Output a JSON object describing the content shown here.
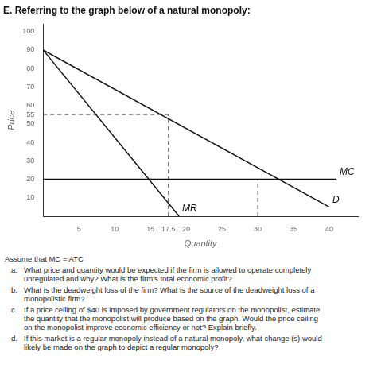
{
  "chart_data": {
    "type": "line",
    "title": "E. Referring to the graph below of a natural monopoly:",
    "x_label": "Quantity",
    "y_label": "Price",
    "xlim": [
      0,
      44
    ],
    "ylim": [
      0,
      104
    ],
    "xticks": [
      5,
      10,
      15,
      17.5,
      20,
      25,
      30,
      35,
      40
    ],
    "yticks": [
      10,
      20,
      30,
      40,
      50,
      55,
      60,
      70,
      80,
      90,
      100
    ],
    "grid": false,
    "series": [
      {
        "name": "D",
        "color": "#111111",
        "points": [
          [
            0,
            90
          ],
          [
            40,
            5
          ]
        ]
      },
      {
        "name": "MR",
        "color": "#111111",
        "points": [
          [
            0,
            90
          ],
          [
            19,
            0
          ]
        ]
      },
      {
        "name": "MC",
        "color": "#111111",
        "points": [
          [
            0,
            20
          ],
          [
            41,
            20
          ]
        ]
      }
    ],
    "dashed_lines": [
      {
        "color": "#666666",
        "line_style": "dashed",
        "points": [
          [
            17.5,
            0
          ],
          [
            17.5,
            55
          ]
        ]
      },
      {
        "color": "#666666",
        "line_style": "dashed",
        "points": [
          [
            0,
            55
          ],
          [
            17.5,
            55
          ]
        ]
      },
      {
        "color": "#666666",
        "line_style": "dashed",
        "points": [
          [
            30,
            0
          ],
          [
            30,
            20
          ]
        ]
      }
    ],
    "annotations": [
      {
        "text": "Assume that MC = ATC"
      },
      {
        "letter": "a.",
        "text": "What price and quantity would be expected if the firm is allowed to operate completely\nunregulated and why?  What is the firm’s total economic profit?"
      },
      {
        "letter": "b.",
        "text": "What is the deadweight loss of the firm?  What is the source of the deadweight loss of a\nmonopolistic firm?"
      },
      {
        "letter": "c.",
        "text": "If a price ceiling of $40 is imposed by government regulators on the monopolist, estimate\nthe quantity that the monopolist will produce based on the graph.  Would the price ceiling\non the monopolist improve economic efficiency or not?  Explain briefly."
      },
      {
        "letter": "d.",
        "text": "If this market is a regular monopoly instead of a natural monopoly, what change (s) would\nlikely be made on the graph to depict a regular monopoly?"
      }
    ]
  }
}
